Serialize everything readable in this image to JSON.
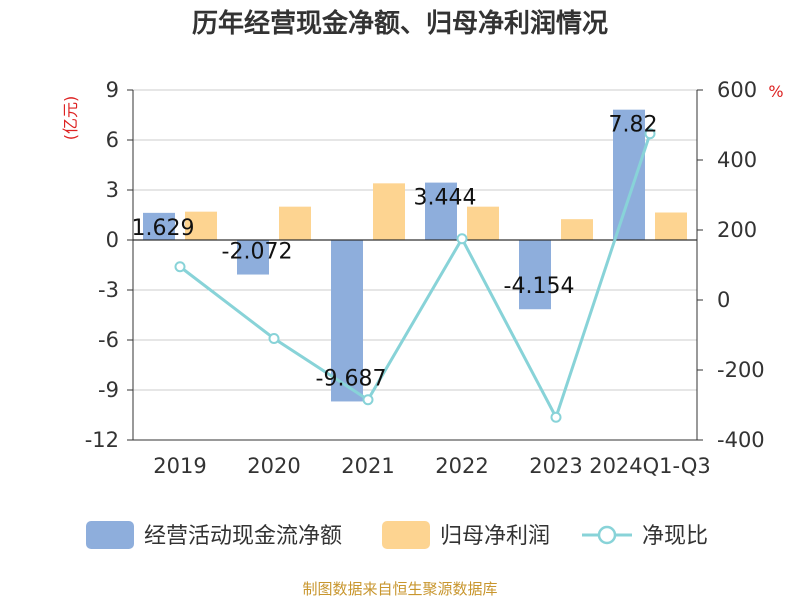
{
  "title": "历年经营现金净额、归母净利润情况",
  "source": "制图数据来自恒生聚源数据库",
  "colors": {
    "bar1": "#8eaedc",
    "bar2": "#fdd491",
    "line": "#88d3d8",
    "unit": "#dd2222",
    "source": "#c8962e"
  },
  "chart_data": {
    "type": "bar",
    "categories": [
      "2019",
      "2020",
      "2021",
      "2022",
      "2023",
      "2024Q1-Q3"
    ],
    "left_axis": {
      "unit": "(亿元)",
      "ticks": [
        "9",
        "6",
        "3",
        "0",
        "-3",
        "-6",
        "-9",
        "-12"
      ],
      "ylim": [
        -12,
        9
      ]
    },
    "right_axis": {
      "unit": "%",
      "ticks": [
        "600",
        "400",
        "200",
        "0",
        "-200",
        "-400"
      ],
      "ylim": [
        -400,
        600
      ]
    },
    "series": [
      {
        "name": "经营活动现金流净额",
        "type": "bar",
        "axis": "left",
        "values": [
          1.629,
          -2.072,
          -9.687,
          3.444,
          -4.154,
          7.82
        ],
        "labels": [
          "1.629",
          "-2.072",
          "-9.687",
          "3.444",
          "-4.154",
          "7.82"
        ]
      },
      {
        "name": "归母净利润",
        "type": "bar",
        "axis": "left",
        "values": [
          1.7,
          2.0,
          3.4,
          2.0,
          1.25,
          1.65
        ]
      },
      {
        "name": "净现比",
        "type": "line",
        "axis": "right",
        "values": [
          95,
          -110,
          -285,
          175,
          -335,
          475
        ]
      }
    ]
  }
}
